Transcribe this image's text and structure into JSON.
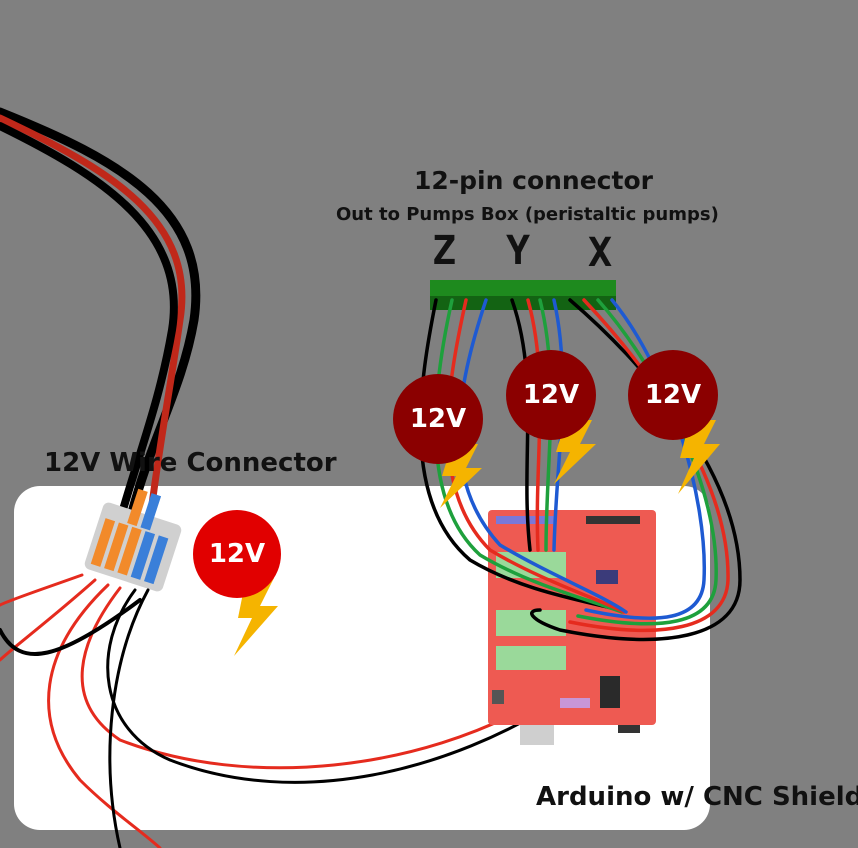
{
  "connector": {
    "title": "12-pin connector",
    "subtitle": "Out to Pumps Box (peristaltic pumps)",
    "axes": [
      "Z",
      "Y",
      "X"
    ]
  },
  "wire_connector": {
    "label": "12V Wire Connector"
  },
  "board": {
    "label": "Arduino w/ CNC Shield"
  },
  "power_badges": {
    "motor_1": "12V",
    "motor_2": "12V",
    "motor_3": "12V",
    "supply": "12V"
  },
  "colors": {
    "background": "#808080",
    "panel": "#ffffff",
    "terminal_green": "#1e8a1e",
    "badge_dark": "#8b0000",
    "badge_bright": "#e10000",
    "bolt": "#f5b400",
    "shield_red": "#ee5a52",
    "wire_red": "#e52b1e",
    "wire_black": "#000000",
    "wire_green": "#1ea03c",
    "wire_blue": "#1e5ad2"
  }
}
